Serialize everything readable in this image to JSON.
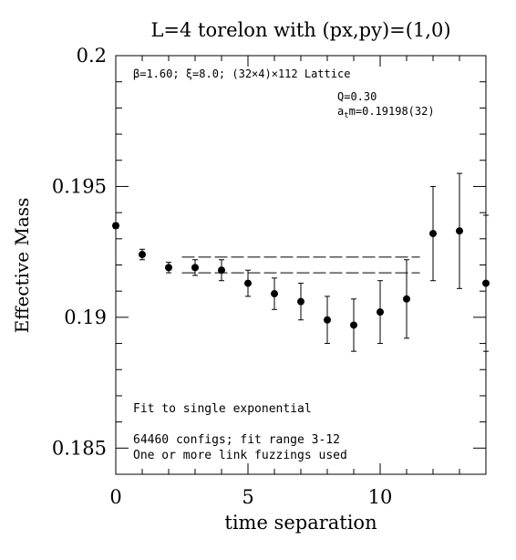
{
  "chart_data": {
    "type": "scatter",
    "title": "L=4 torelon with (px,py)=(1,0)",
    "xlabel": "time separation",
    "ylabel": "Effective Mass",
    "xlim": [
      0,
      14
    ],
    "ylim": [
      0.184,
      0.2
    ],
    "x_ticks": [
      0,
      5,
      10
    ],
    "x_tick_labels": [
      "0",
      "5",
      "10"
    ],
    "y_ticks": [
      0.185,
      0.19,
      0.195,
      0.2
    ],
    "y_tick_labels": [
      "0.185",
      "0.19",
      "0.195",
      "0.2"
    ],
    "annotations": {
      "lattice": "β=1.60; ξ=8.0; (32×4)×112 Lattice",
      "q": "Q=0.30",
      "atm_prefix": "a",
      "atm_sub": "t",
      "atm_suffix": "m=0.19198(32)",
      "fit_type": "Fit to single exponential",
      "configs": "64460 configs; fit range 3-12",
      "fuzzing": "One or more link fuzzings used"
    },
    "fit": {
      "x_range": [
        2.5,
        11.5
      ],
      "upper": 0.1923,
      "lower": 0.1917
    },
    "points": [
      {
        "x": 0,
        "y": 0.1935,
        "err": 0.0001
      },
      {
        "x": 1,
        "y": 0.1924,
        "err": 0.0002
      },
      {
        "x": 2,
        "y": 0.1919,
        "err": 0.0002
      },
      {
        "x": 3,
        "y": 0.1919,
        "err": 0.0003
      },
      {
        "x": 4,
        "y": 0.1918,
        "err": 0.0004
      },
      {
        "x": 5,
        "y": 0.1913,
        "err": 0.0005
      },
      {
        "x": 6,
        "y": 0.1909,
        "err": 0.0006
      },
      {
        "x": 7,
        "y": 0.1906,
        "err": 0.0007
      },
      {
        "x": 8,
        "y": 0.1899,
        "err": 0.0009
      },
      {
        "x": 9,
        "y": 0.1897,
        "err": 0.001
      },
      {
        "x": 10,
        "y": 0.1902,
        "err": 0.0012
      },
      {
        "x": 11,
        "y": 0.1907,
        "err": 0.0015
      },
      {
        "x": 12,
        "y": 0.1932,
        "err": 0.0018
      },
      {
        "x": 13,
        "y": 0.1933,
        "err": 0.0022
      },
      {
        "x": 14,
        "y": 0.1913,
        "err": 0.0026
      }
    ]
  }
}
